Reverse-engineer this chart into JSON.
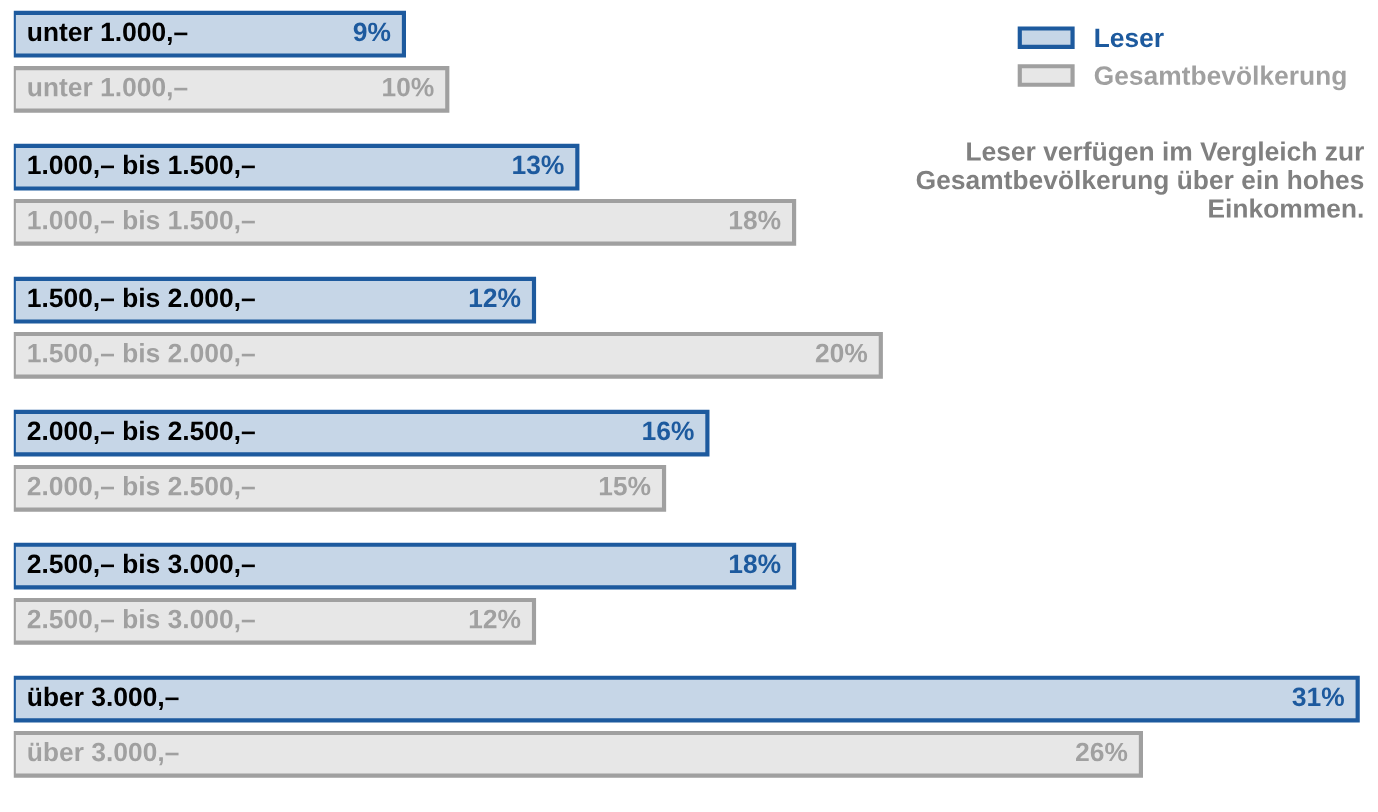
{
  "chart_data": {
    "type": "bar",
    "orientation": "horizontal",
    "categories": [
      "unter 1.000,–",
      "1.000,– bis 1.500,–",
      "1.500,– bis 2.000,–",
      "2.000,– bis 2.500,–",
      "2.500,– bis 3.000,–",
      "über 3.000,–"
    ],
    "series": [
      {
        "name": "Leser",
        "color": "#1d5a9e",
        "values": [
          9,
          13,
          12,
          16,
          18,
          31
        ],
        "value_labels": [
          "9%",
          "13%",
          "12%",
          "16%",
          "18%",
          "31%"
        ]
      },
      {
        "name": "Gesamtbevölkerung",
        "color": "#a0a0a0",
        "values": [
          10,
          18,
          20,
          15,
          12,
          26
        ],
        "value_labels": [
          "10%",
          "18%",
          "20%",
          "15%",
          "12%",
          "26%"
        ]
      }
    ],
    "legend": "top right",
    "annotations": [
      "Leser verfügen im Vergleich zur Gesamtbevölkerung über ein hohes Einkommen."
    ]
  }
}
